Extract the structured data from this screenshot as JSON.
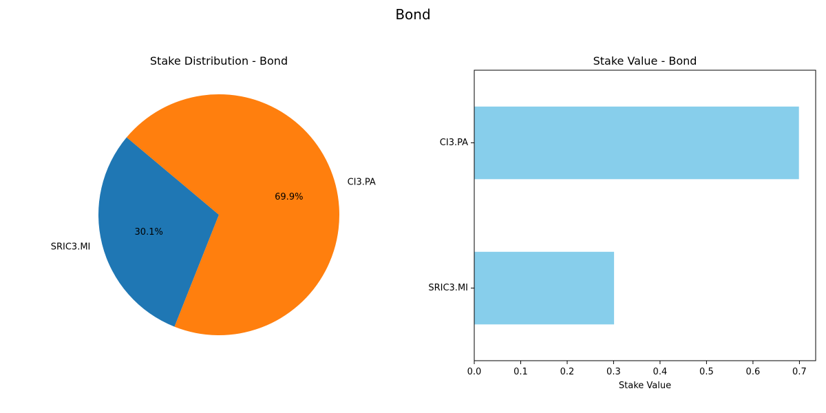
{
  "figure": {
    "title": "Bond"
  },
  "chart_data": [
    {
      "type": "pie",
      "title": "Stake Distribution - Bond",
      "slices": [
        {
          "label": "SRIC3.MI",
          "value": 0.301,
          "pct_label": "30.1%",
          "color": "#1f77b4"
        },
        {
          "label": "CI3.PA",
          "value": 0.699,
          "pct_label": "69.9%",
          "color": "#ff7f0e"
        }
      ],
      "start_angle_deg": 140,
      "direction": "counterclockwise"
    },
    {
      "type": "bar",
      "orientation": "horizontal",
      "title": "Stake Value - Bond",
      "categories": [
        "SRIC3.MI",
        "CI3.PA"
      ],
      "values": [
        0.301,
        0.699
      ],
      "xlabel": "Stake Value",
      "ylabel": "",
      "xlim": [
        0,
        0.735
      ],
      "xticks": [
        0.0,
        0.1,
        0.2,
        0.3,
        0.4,
        0.5,
        0.6,
        0.7
      ],
      "xtick_labels": [
        "0.0",
        "0.1",
        "0.2",
        "0.3",
        "0.4",
        "0.5",
        "0.6",
        "0.7"
      ],
      "bar_color": "#87ceeb",
      "grid": false
    }
  ]
}
